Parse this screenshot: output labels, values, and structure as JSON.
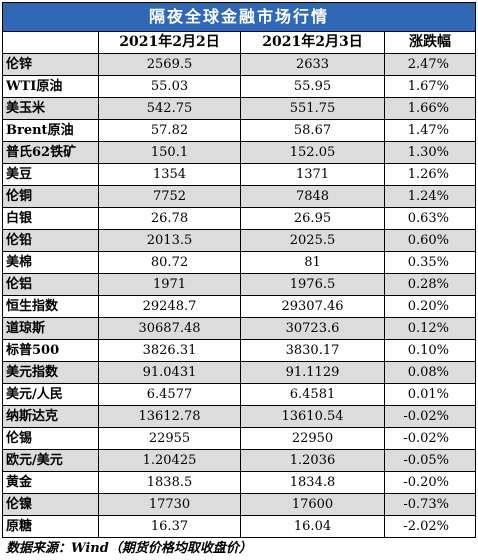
{
  "title": "隔夜全球金融市场行情",
  "headers": [
    "",
    "2021年2月2日",
    "2021年2月3日",
    "涨跌幅"
  ],
  "rows": [
    {
      "name": "伦锌",
      "d1": "2569.5",
      "d2": "2633",
      "chg": "2.47%"
    },
    {
      "name": "WTI原油",
      "d1": "55.03",
      "d2": "55.95",
      "chg": "1.67%"
    },
    {
      "name": "美玉米",
      "d1": "542.75",
      "d2": "551.75",
      "chg": "1.66%"
    },
    {
      "name": "Brent原油",
      "d1": "57.82",
      "d2": "58.67",
      "chg": "1.47%"
    },
    {
      "name": "普氏62铁矿",
      "d1": "150.1",
      "d2": "152.05",
      "chg": "1.30%"
    },
    {
      "name": "美豆",
      "d1": "1354",
      "d2": "1371",
      "chg": "1.26%"
    },
    {
      "name": "伦铜",
      "d1": "7752",
      "d2": "7848",
      "chg": "1.24%"
    },
    {
      "name": "白银",
      "d1": "26.78",
      "d2": "26.95",
      "chg": "0.63%"
    },
    {
      "name": "伦铅",
      "d1": "2013.5",
      "d2": "2025.5",
      "chg": "0.60%"
    },
    {
      "name": "美棉",
      "d1": "80.72",
      "d2": "81",
      "chg": "0.35%"
    },
    {
      "name": "伦铝",
      "d1": "1971",
      "d2": "1976.5",
      "chg": "0.28%"
    },
    {
      "name": "恒生指数",
      "d1": "29248.7",
      "d2": "29307.46",
      "chg": "0.20%"
    },
    {
      "name": "道琼斯",
      "d1": "30687.48",
      "d2": "30723.6",
      "chg": "0.12%"
    },
    {
      "name": "标普500",
      "d1": "3826.31",
      "d2": "3830.17",
      "chg": "0.10%"
    },
    {
      "name": "美元指数",
      "d1": "91.0431",
      "d2": "91.1129",
      "chg": "0.08%"
    },
    {
      "name": "美元/人民",
      "d1": "6.4577",
      "d2": "6.4581",
      "chg": "0.01%"
    },
    {
      "name": "纳斯达克",
      "d1": "13612.78",
      "d2": "13610.54",
      "chg": "-0.02%"
    },
    {
      "name": "伦锡",
      "d1": "22955",
      "d2": "22950",
      "chg": "-0.02%"
    },
    {
      "name": "欧元/美元",
      "d1": "1.20425",
      "d2": "1.2036",
      "chg": "-0.05%"
    },
    {
      "name": "黄金",
      "d1": "1838.5",
      "d2": "1834.8",
      "chg": "-0.20%"
    },
    {
      "name": "伦镍",
      "d1": "17730",
      "d2": "17600",
      "chg": "-0.73%"
    },
    {
      "name": "原糖",
      "d1": "16.37",
      "d2": "16.04",
      "chg": "-2.02%"
    }
  ],
  "source": "数据来源：Wind（期货价格均取收盘价）"
}
